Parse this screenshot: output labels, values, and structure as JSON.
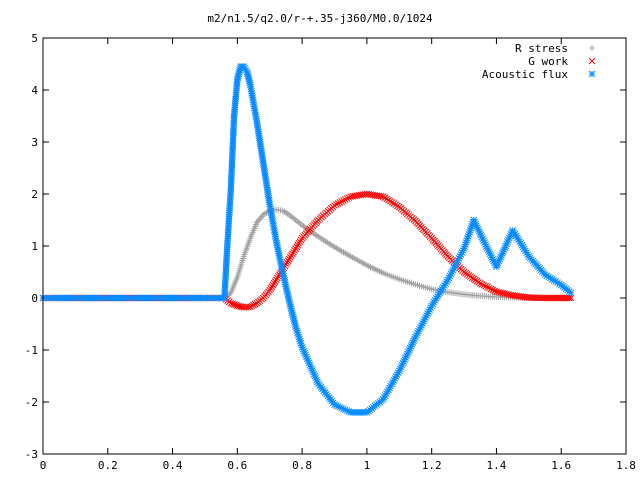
{
  "chart_data": {
    "type": "scatter",
    "title": "m2/n1.5/q2.0/r-+.35-j360/M0.0/1024",
    "xlabel": "",
    "ylabel": "",
    "xlim": [
      0,
      1.8
    ],
    "ylim": [
      -3,
      5
    ],
    "xticks": [
      "0",
      "0.2",
      "0.4",
      "0.6",
      "0.8",
      "1",
      "1.2",
      "1.4",
      "1.6",
      "1.8"
    ],
    "yticks": [
      "-3",
      "-2",
      "-1",
      "0",
      "1",
      "2",
      "3",
      "4",
      "5"
    ],
    "legend_position": "top-right",
    "grid": false,
    "series": [
      {
        "name": "R stress",
        "color": "#a0a0a0",
        "marker": "plus",
        "x": [
          0.0,
          0.2,
          0.4,
          0.56,
          0.58,
          0.6,
          0.62,
          0.64,
          0.66,
          0.68,
          0.7,
          0.72,
          0.74,
          0.76,
          0.8,
          0.85,
          0.9,
          0.95,
          1.0,
          1.05,
          1.1,
          1.15,
          1.2,
          1.25,
          1.3,
          1.35,
          1.4,
          1.45,
          1.5,
          1.55,
          1.6,
          1.63
        ],
        "y": [
          0.0,
          0.0,
          0.0,
          0.0,
          0.1,
          0.4,
          0.8,
          1.15,
          1.45,
          1.6,
          1.68,
          1.7,
          1.68,
          1.6,
          1.4,
          1.18,
          0.98,
          0.8,
          0.63,
          0.48,
          0.36,
          0.26,
          0.17,
          0.11,
          0.07,
          0.04,
          0.02,
          0.01,
          0.0,
          0.0,
          0.0,
          0.0
        ]
      },
      {
        "name": "G work",
        "color": "#ff0000",
        "marker": "cross",
        "x": [
          0.0,
          0.56,
          0.58,
          0.6,
          0.62,
          0.64,
          0.66,
          0.68,
          0.7,
          0.72,
          0.74,
          0.76,
          0.8,
          0.85,
          0.9,
          0.95,
          1.0,
          1.05,
          1.1,
          1.15,
          1.2,
          1.25,
          1.3,
          1.35,
          1.4,
          1.45,
          1.5,
          1.55,
          1.6,
          1.63
        ],
        "y": [
          0.0,
          0.0,
          -0.1,
          -0.15,
          -0.18,
          -0.17,
          -0.1,
          0.0,
          0.15,
          0.35,
          0.55,
          0.75,
          1.15,
          1.5,
          1.78,
          1.95,
          2.0,
          1.95,
          1.75,
          1.48,
          1.15,
          0.8,
          0.5,
          0.28,
          0.12,
          0.05,
          0.01,
          0.0,
          0.0,
          0.0
        ]
      },
      {
        "name": "Acoustic flux",
        "color": "#0a8cff",
        "marker": "star",
        "x": [
          0.0,
          0.2,
          0.4,
          0.56,
          0.57,
          0.58,
          0.59,
          0.6,
          0.61,
          0.62,
          0.63,
          0.64,
          0.66,
          0.68,
          0.7,
          0.72,
          0.74,
          0.76,
          0.78,
          0.8,
          0.85,
          0.9,
          0.95,
          1.0,
          1.05,
          1.1,
          1.15,
          1.2,
          1.25,
          1.3,
          1.33,
          1.36,
          1.4,
          1.45,
          1.5,
          1.55,
          1.6,
          1.63
        ],
        "y": [
          0.0,
          0.0,
          0.0,
          0.0,
          1.1,
          2.1,
          3.5,
          4.2,
          4.45,
          4.45,
          4.35,
          4.1,
          3.4,
          2.6,
          1.8,
          1.1,
          0.5,
          -0.05,
          -0.55,
          -0.95,
          -1.65,
          -2.05,
          -2.2,
          -2.2,
          -1.95,
          -1.4,
          -0.75,
          -0.15,
          0.35,
          0.95,
          1.5,
          1.1,
          0.6,
          1.3,
          0.8,
          0.45,
          0.25,
          0.1
        ]
      }
    ]
  }
}
